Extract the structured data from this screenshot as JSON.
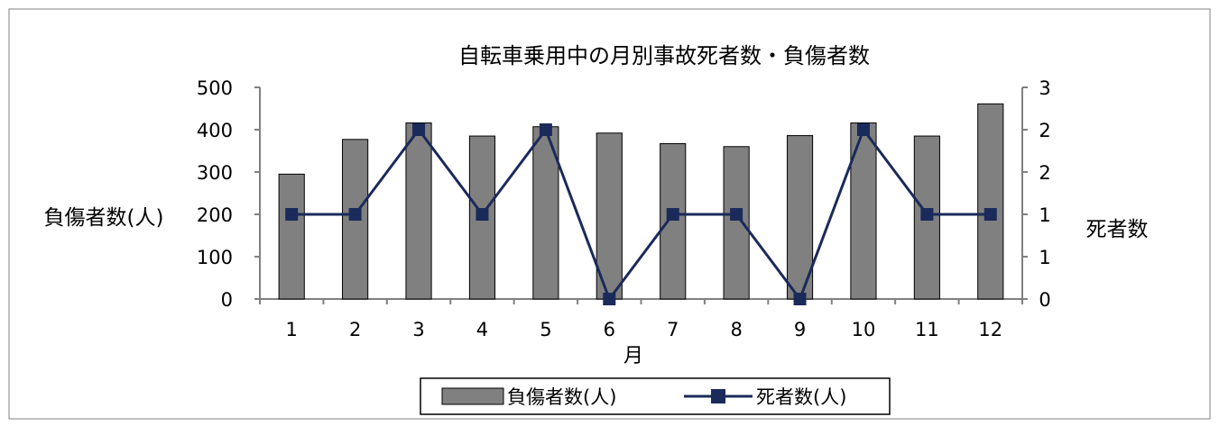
{
  "chart_data": {
    "type": "bar",
    "title": "自転車乗用中の月別事故死者数・負傷者数",
    "xlabel": "月",
    "ylabel_left": "負傷者数(人)",
    "ylabel_right": "死者数",
    "categories": [
      "1",
      "2",
      "3",
      "4",
      "5",
      "6",
      "7",
      "8",
      "9",
      "10",
      "11",
      "12"
    ],
    "series": [
      {
        "name": "負傷者数(人)",
        "type": "bar",
        "axis": "left",
        "color": "#808080",
        "values": [
          295,
          377,
          416,
          385,
          407,
          392,
          367,
          360,
          386,
          416,
          385,
          461
        ]
      },
      {
        "name": "死者数(人)",
        "type": "line",
        "axis": "right",
        "color": "#1a2a5a",
        "values": [
          1,
          1,
          2,
          1,
          2,
          0,
          1,
          1,
          0,
          2,
          1,
          1
        ]
      }
    ],
    "y_left": {
      "range": [
        0,
        500
      ],
      "ticks": [
        "0",
        "100",
        "200",
        "300",
        "400",
        "500"
      ]
    },
    "y_right": {
      "range": [
        0,
        2.5
      ],
      "ticks": [
        "0",
        "1",
        "1",
        "2",
        "2",
        "3"
      ]
    },
    "grid": false,
    "legend_position": "bottom"
  }
}
